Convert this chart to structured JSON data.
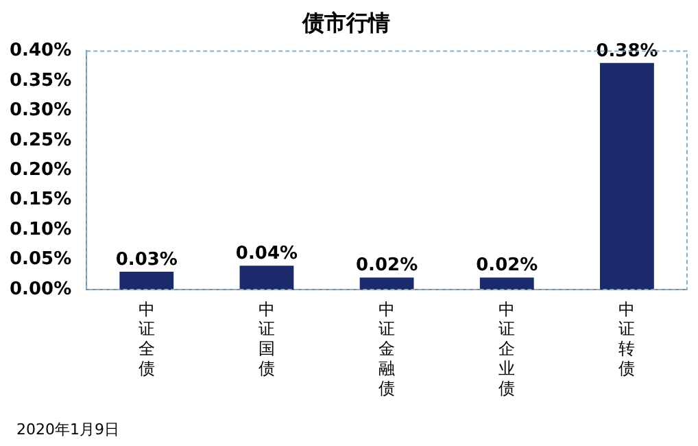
{
  "chart_data": {
    "type": "bar",
    "title": "债市行情",
    "categories": [
      "中证全债",
      "中证国债",
      "中证金融债",
      "中证企业债",
      "中证转债"
    ],
    "values": [
      0.03,
      0.04,
      0.02,
      0.02,
      0.38
    ],
    "value_labels": [
      "0.03%",
      "0.04%",
      "0.02%",
      "0.02%",
      "0.38%"
    ],
    "color": "#1b2a6b",
    "ylim": [
      0,
      0.4
    ],
    "yticks": [
      {
        "value": 0,
        "label": "0.00%"
      },
      {
        "value": 0.05,
        "label": "0.05%"
      },
      {
        "value": 0.1,
        "label": "0.10%"
      },
      {
        "value": 0.15,
        "label": "0.15%"
      },
      {
        "value": 0.2,
        "label": "0.20%"
      },
      {
        "value": 0.25,
        "label": "0.25%"
      },
      {
        "value": 0.3,
        "label": "0.30%"
      },
      {
        "value": 0.35,
        "label": "0.35%"
      },
      {
        "value": 0.4,
        "label": "0.40%"
      }
    ],
    "grid": false,
    "legend": false,
    "annotations": [
      "2020年1月9日"
    ]
  }
}
